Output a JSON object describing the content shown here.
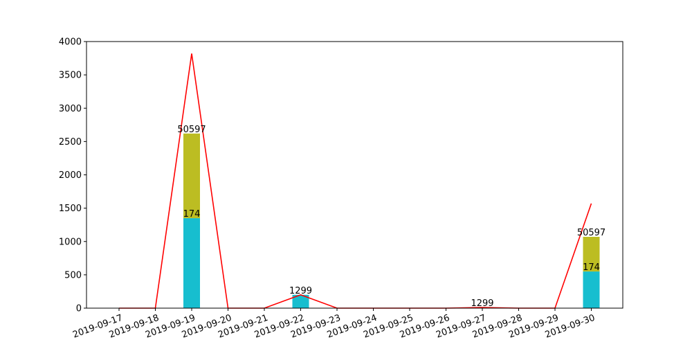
{
  "chart_data": {
    "type": "bar",
    "categories": [
      "2019-09-17",
      "2019-09-18",
      "2019-09-19",
      "2019-09-20",
      "2019-09-21",
      "2019-09-22",
      "2019-09-23",
      "2019-09-24",
      "2019-09-25",
      "2019-09-26",
      "2019-09-27",
      "2019-09-28",
      "2019-09-29",
      "2019-09-30"
    ],
    "ylim": [
      0,
      4000
    ],
    "yticks": [
      0,
      500,
      1000,
      1500,
      2000,
      2500,
      3000,
      3500,
      4000
    ],
    "grid": false,
    "legend": "none",
    "series": [
      {
        "kind": "bar",
        "color": "#17becf",
        "values": [
          0,
          0,
          1350,
          0,
          0,
          200,
          0,
          0,
          0,
          0,
          10,
          0,
          0,
          550
        ]
      },
      {
        "kind": "bar-stacked",
        "color": "#bcbd22",
        "values": [
          0,
          0,
          1270,
          0,
          0,
          0,
          0,
          0,
          0,
          0,
          0,
          0,
          0,
          520
        ]
      },
      {
        "kind": "line",
        "color": "#ff0000",
        "values": [
          0,
          0,
          3820,
          0,
          0,
          200,
          0,
          0,
          0,
          0,
          10,
          0,
          0,
          1570
        ]
      }
    ],
    "annotations": [
      {
        "category": "2019-09-19",
        "y": 2620,
        "text": "50597"
      },
      {
        "category": "2019-09-19",
        "y": 1350,
        "text": "174"
      },
      {
        "category": "2019-09-22",
        "y": 200,
        "text": "1299"
      },
      {
        "category": "2019-09-27",
        "y": 10,
        "text": "1299"
      },
      {
        "category": "2019-09-30",
        "y": 1070,
        "text": "50597"
      },
      {
        "category": "2019-09-30",
        "y": 550,
        "text": "174"
      }
    ]
  }
}
